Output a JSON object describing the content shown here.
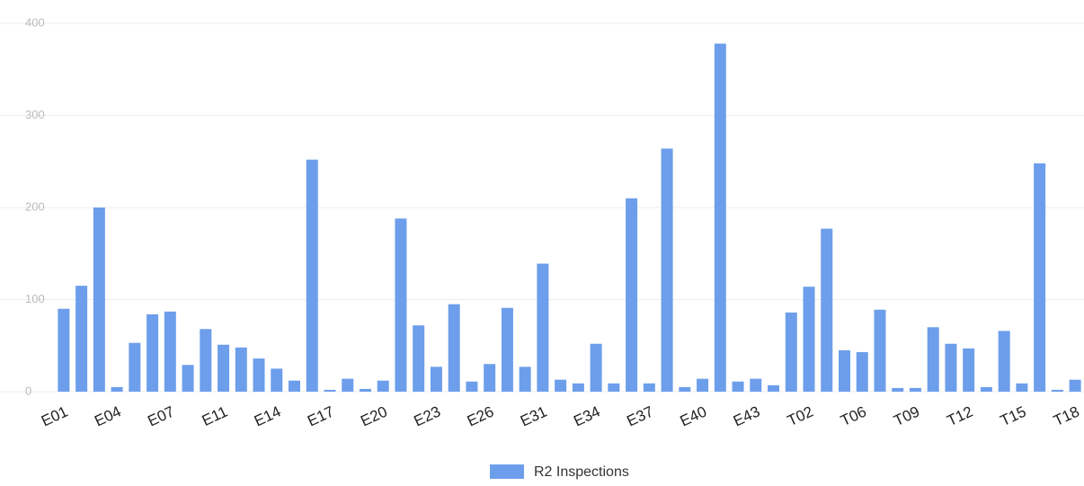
{
  "chart_data": {
    "type": "bar",
    "categories": [
      "E01",
      null,
      null,
      "E04",
      null,
      null,
      "E07",
      null,
      null,
      "E11",
      null,
      null,
      "E14",
      null,
      null,
      "E17",
      null,
      null,
      "E20",
      null,
      null,
      "E23",
      null,
      null,
      "E26",
      null,
      null,
      "E31",
      null,
      null,
      "E34",
      null,
      null,
      "E37",
      null,
      null,
      "E40",
      null,
      null,
      "E43",
      null,
      null,
      "T02",
      null,
      null,
      "T06",
      null,
      null,
      "T09",
      null,
      null,
      "T12",
      null,
      null,
      "T15",
      null,
      null,
      "T18"
    ],
    "series": [
      {
        "name": "R2 Inspections",
        "color": "#6d9eeb",
        "values": [
          90,
          115,
          200,
          5,
          53,
          84,
          87,
          29,
          68,
          51,
          48,
          36,
          25,
          12,
          252,
          2,
          14,
          3,
          12,
          188,
          72,
          27,
          95,
          11,
          30,
          91,
          27,
          139,
          13,
          9,
          52,
          9,
          210,
          9,
          264,
          5,
          14,
          378,
          11,
          14,
          7,
          86,
          114,
          177,
          45,
          43,
          89,
          4,
          4,
          70,
          52,
          47,
          5,
          66,
          9,
          248,
          2,
          13
        ]
      }
    ],
    "ylim": [
      0,
      400
    ],
    "yticks": [
      0,
      100,
      200,
      300,
      400
    ],
    "grid": true,
    "legend": "bottom"
  }
}
